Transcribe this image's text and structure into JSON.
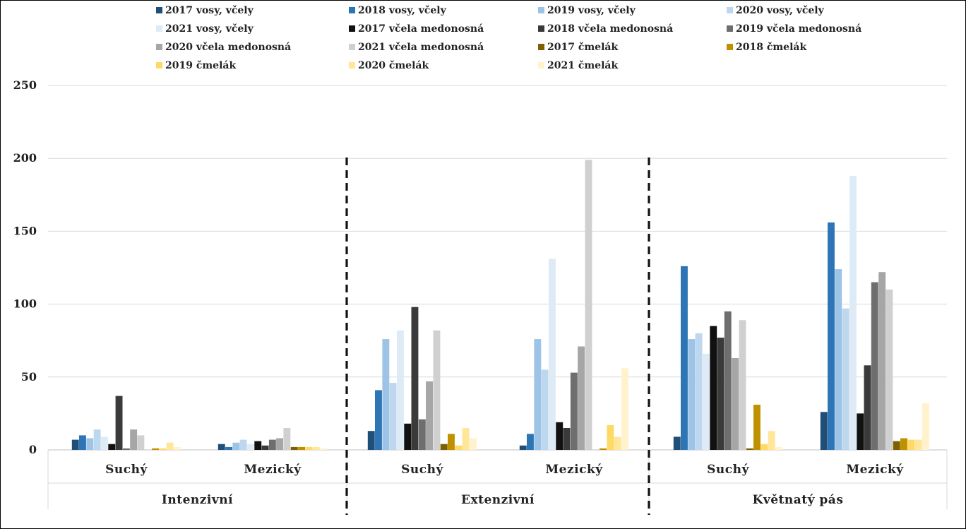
{
  "chart_data": {
    "type": "bar",
    "ylim": [
      0,
      250
    ],
    "yticks": [
      0,
      50,
      100,
      150,
      200,
      250
    ],
    "grid": true,
    "legend_position": "top",
    "groups": [
      {
        "label": "Intenzivní",
        "categories": [
          "Suchý",
          "Mezický"
        ]
      },
      {
        "label": "Extenzivní",
        "categories": [
          "Suchý",
          "Mezický"
        ]
      },
      {
        "label": "Květnatý pás",
        "categories": [
          "Suchý",
          "Mezický"
        ]
      }
    ],
    "series": [
      {
        "name": "2017 vosy, včely",
        "color": "#1f4e79",
        "values": [
          7,
          4,
          13,
          3,
          9,
          26
        ]
      },
      {
        "name": "2018 vosy, včely",
        "color": "#2e75b6",
        "values": [
          10,
          2,
          41,
          11,
          126,
          156
        ]
      },
      {
        "name": "2019 vosy, včely",
        "color": "#9dc3e6",
        "values": [
          8,
          5,
          76,
          76,
          76,
          124
        ]
      },
      {
        "name": "2020 vosy, včely",
        "color": "#bdd7ee",
        "values": [
          14,
          7,
          46,
          55,
          80,
          97
        ]
      },
      {
        "name": "2021 vosy, včely",
        "color": "#deebf7",
        "values": [
          9,
          4,
          82,
          131,
          66,
          188
        ]
      },
      {
        "name": "2017 včela medonosná",
        "color": "#111111",
        "values": [
          4,
          6,
          18,
          19,
          85,
          25
        ]
      },
      {
        "name": "2018 včela medonosná",
        "color": "#3a3a3a",
        "values": [
          37,
          3,
          98,
          15,
          77,
          58
        ]
      },
      {
        "name": "2019 včela medonosná",
        "color": "#6e6e6e",
        "values": [
          1,
          7,
          21,
          53,
          95,
          115
        ]
      },
      {
        "name": "2020 včela medonosná",
        "color": "#a6a6a6",
        "values": [
          14,
          8,
          47,
          71,
          63,
          122
        ]
      },
      {
        "name": "2021 včela medonosná",
        "color": "#d0d0d0",
        "values": [
          10,
          15,
          82,
          199,
          89,
          110
        ]
      },
      {
        "name": "2017 čmelák",
        "color": "#7f6000",
        "values": [
          0,
          2,
          4,
          0,
          1,
          6
        ]
      },
      {
        "name": "2018 čmelák",
        "color": "#bf9000",
        "values": [
          1,
          2,
          11,
          1,
          31,
          8
        ]
      },
      {
        "name": "2019 čmelák",
        "color": "#ffd966",
        "values": [
          1,
          2,
          3,
          17,
          4,
          7
        ]
      },
      {
        "name": "2020 čmelák",
        "color": "#ffe699",
        "values": [
          5,
          2,
          15,
          9,
          13,
          7
        ]
      },
      {
        "name": "2021 čmelák",
        "color": "#fff2cc",
        "values": [
          2,
          1,
          8,
          56,
          2,
          32
        ]
      }
    ]
  }
}
